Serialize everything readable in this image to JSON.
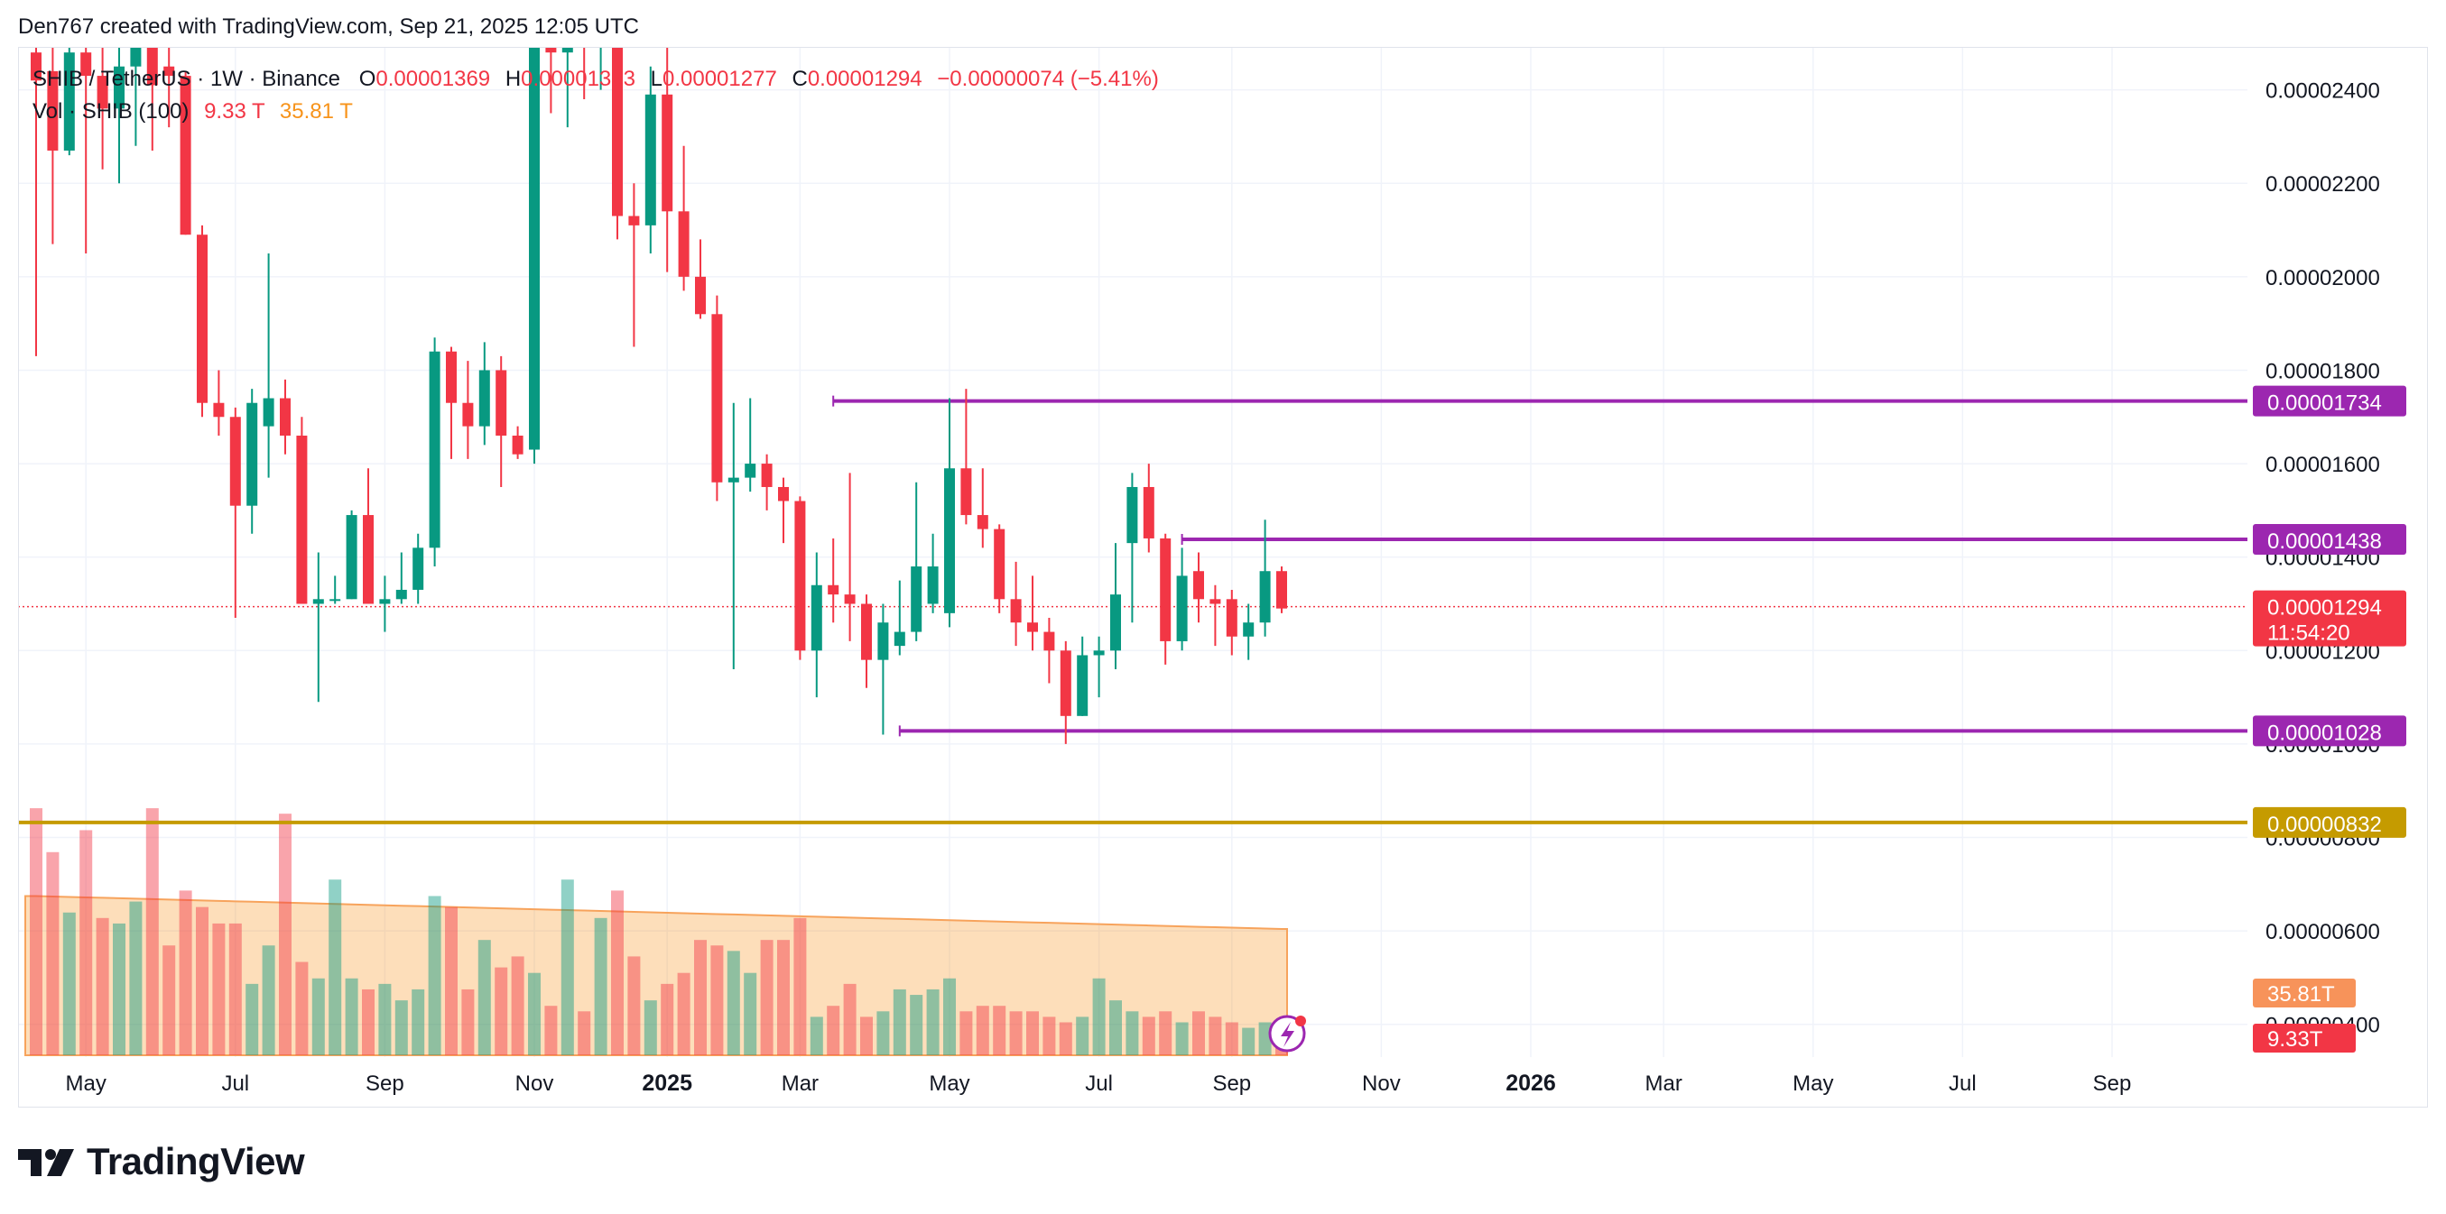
{
  "header": {
    "text": "Den767 created with TradingView.com, Sep 21, 2025 12:05 UTC"
  },
  "legend": {
    "symbol": "SHIB / TetherUS · 1W · Binance",
    "open_label": "O",
    "open": "0.00001369",
    "high_label": "H",
    "high": "0.00001383",
    "low_label": "L",
    "low": "0.00001277",
    "close_label": "C",
    "close": "0.00001294",
    "change": "−0.00000074 (−5.41%)",
    "vol_label": "Vol · SHIB (100)",
    "vol_value": "9.33 T",
    "vol_ma": "35.81 T"
  },
  "footer": {
    "brand": "TradingView"
  },
  "colors": {
    "up": "#089981",
    "down": "#f23645",
    "level": "#9c27b0",
    "support": "#c59b00",
    "vol_up": "rgba(8,153,129,0.45)",
    "vol_down": "rgba(242,54,69,0.45)",
    "vol_ma_fill": "rgba(247,147,26,0.30)",
    "vol_ma_line": "#f7a35c",
    "tag_vol_ma": "#f7935a",
    "tag_vol": "#f23645",
    "grid": "#f0f3fa"
  },
  "chart_data": {
    "type": "candlestick",
    "timeframe": "1W",
    "y_axis": {
      "ticks": [
        "0.00002400",
        "0.00002200",
        "0.00002000",
        "0.00001800",
        "0.00001600",
        "0.00001400",
        "0.00001200",
        "0.00001000",
        "0.00000800",
        "0.00000600",
        "0.00000400"
      ],
      "tick_values": [
        2.4e-05,
        2.2e-05,
        2e-05,
        1.8e-05,
        1.6e-05,
        1.4e-05,
        1.2e-05,
        1e-05,
        8e-06,
        6e-06,
        4e-06
      ],
      "ylim": [
        3.3e-06,
        2.49e-05
      ]
    },
    "x_axis": {
      "labels": [
        {
          "text": "May",
          "bold": false,
          "week": 3
        },
        {
          "text": "Jul",
          "bold": false,
          "week": 12
        },
        {
          "text": "Sep",
          "bold": false,
          "week": 21
        },
        {
          "text": "Nov",
          "bold": false,
          "week": 30
        },
        {
          "text": "2025",
          "bold": true,
          "week": 38
        },
        {
          "text": "Mar",
          "bold": false,
          "week": 46
        },
        {
          "text": "May",
          "bold": false,
          "week": 55
        },
        {
          "text": "Jul",
          "bold": false,
          "week": 64
        },
        {
          "text": "Sep",
          "bold": false,
          "week": 72
        },
        {
          "text": "Nov",
          "bold": false,
          "week": 81
        },
        {
          "text": "2026",
          "bold": true,
          "week": 90
        },
        {
          "text": "Mar",
          "bold": false,
          "week": 98
        },
        {
          "text": "May",
          "bold": false,
          "week": 107
        },
        {
          "text": "Jul",
          "bold": false,
          "week": 116
        },
        {
          "text": "Sep",
          "bold": false,
          "week": 125
        }
      ],
      "weeks_visible": 133
    },
    "candles": [
      {
        "o": 2.48e-05,
        "h": 2.62e-05,
        "l": 1.83e-05,
        "c": 2.42e-05
      },
      {
        "o": 2.44e-05,
        "h": 2.54e-05,
        "l": 2.07e-05,
        "c": 2.27e-05
      },
      {
        "o": 2.27e-05,
        "h": 2.6e-05,
        "l": 2.26e-05,
        "c": 2.48e-05
      },
      {
        "o": 2.48e-05,
        "h": 2.62e-05,
        "l": 2.05e-05,
        "c": 2.43e-05
      },
      {
        "o": 2.43e-05,
        "h": 2.56e-05,
        "l": 2.23e-05,
        "c": 2.36e-05
      },
      {
        "o": 2.36e-05,
        "h": 2.55e-05,
        "l": 2.2e-05,
        "c": 2.45e-05
      },
      {
        "o": 2.45e-05,
        "h": 2.54e-05,
        "l": 2.28e-05,
        "c": 2.5e-05
      },
      {
        "o": 2.5e-05,
        "h": 2.52e-05,
        "l": 2.27e-05,
        "c": 2.41e-05
      },
      {
        "o": 2.45e-05,
        "h": 2.53e-05,
        "l": 2.32e-05,
        "c": 2.43e-05
      },
      {
        "o": 2.43e-05,
        "h": 2.44e-05,
        "l": 2.09e-05,
        "c": 2.09e-05
      },
      {
        "o": 2.09e-05,
        "h": 2.11e-05,
        "l": 1.7e-05,
        "c": 1.73e-05
      },
      {
        "o": 1.73e-05,
        "h": 1.8e-05,
        "l": 1.66e-05,
        "c": 1.7e-05
      },
      {
        "o": 1.7e-05,
        "h": 1.72e-05,
        "l": 1.27e-05,
        "c": 1.51e-05
      },
      {
        "o": 1.51e-05,
        "h": 1.76e-05,
        "l": 1.45e-05,
        "c": 1.73e-05
      },
      {
        "o": 1.68e-05,
        "h": 2.05e-05,
        "l": 1.57e-05,
        "c": 1.74e-05
      },
      {
        "o": 1.74e-05,
        "h": 1.78e-05,
        "l": 1.62e-05,
        "c": 1.66e-05
      },
      {
        "o": 1.66e-05,
        "h": 1.7e-05,
        "l": 1.3e-05,
        "c": 1.3e-05
      },
      {
        "o": 1.3e-05,
        "h": 1.41e-05,
        "l": 1.09e-05,
        "c": 1.31e-05
      },
      {
        "o": 1.31e-05,
        "h": 1.36e-05,
        "l": 1.3e-05,
        "c": 1.31e-05
      },
      {
        "o": 1.31e-05,
        "h": 1.5e-05,
        "l": 1.31e-05,
        "c": 1.49e-05
      },
      {
        "o": 1.49e-05,
        "h": 1.59e-05,
        "l": 1.3e-05,
        "c": 1.3e-05
      },
      {
        "o": 1.3e-05,
        "h": 1.36e-05,
        "l": 1.24e-05,
        "c": 1.31e-05
      },
      {
        "o": 1.31e-05,
        "h": 1.41e-05,
        "l": 1.3e-05,
        "c": 1.33e-05
      },
      {
        "o": 1.33e-05,
        "h": 1.45e-05,
        "l": 1.3e-05,
        "c": 1.42e-05
      },
      {
        "o": 1.42e-05,
        "h": 1.87e-05,
        "l": 1.38e-05,
        "c": 1.84e-05
      },
      {
        "o": 1.84e-05,
        "h": 1.85e-05,
        "l": 1.61e-05,
        "c": 1.73e-05
      },
      {
        "o": 1.73e-05,
        "h": 1.82e-05,
        "l": 1.61e-05,
        "c": 1.68e-05
      },
      {
        "o": 1.68e-05,
        "h": 1.86e-05,
        "l": 1.64e-05,
        "c": 1.8e-05
      },
      {
        "o": 1.8e-05,
        "h": 1.83e-05,
        "l": 1.55e-05,
        "c": 1.66e-05
      },
      {
        "o": 1.66e-05,
        "h": 1.68e-05,
        "l": 1.61e-05,
        "c": 1.62e-05
      },
      {
        "o": 1.63e-05,
        "h": 2.6e-05,
        "l": 1.6e-05,
        "c": 2.5e-05
      },
      {
        "o": 2.5e-05,
        "h": 2.62e-05,
        "l": 2.35e-05,
        "c": 2.48e-05
      },
      {
        "o": 2.48e-05,
        "h": 2.62e-05,
        "l": 2.32e-05,
        "c": 2.53e-05
      },
      {
        "o": 2.53e-05,
        "h": 2.62e-05,
        "l": 2.38e-05,
        "c": 2.49e-05
      },
      {
        "o": 2.49e-05,
        "h": 2.58e-05,
        "l": 2.4e-05,
        "c": 2.52e-05
      },
      {
        "o": 2.52e-05,
        "h": 2.56e-05,
        "l": 2.08e-05,
        "c": 2.13e-05
      },
      {
        "o": 2.13e-05,
        "h": 2.2e-05,
        "l": 1.85e-05,
        "c": 2.11e-05
      },
      {
        "o": 2.11e-05,
        "h": 2.45e-05,
        "l": 2.05e-05,
        "c": 2.39e-05
      },
      {
        "o": 2.39e-05,
        "h": 2.5e-05,
        "l": 2.01e-05,
        "c": 2.14e-05
      },
      {
        "o": 2.14e-05,
        "h": 2.28e-05,
        "l": 1.97e-05,
        "c": 2e-05
      },
      {
        "o": 2e-05,
        "h": 2.08e-05,
        "l": 1.91e-05,
        "c": 1.92e-05
      },
      {
        "o": 1.92e-05,
        "h": 1.96e-05,
        "l": 1.52e-05,
        "c": 1.56e-05
      },
      {
        "o": 1.56e-05,
        "h": 1.73e-05,
        "l": 1.16e-05,
        "c": 1.57e-05
      },
      {
        "o": 1.57e-05,
        "h": 1.74e-05,
        "l": 1.54e-05,
        "c": 1.6e-05
      },
      {
        "o": 1.6e-05,
        "h": 1.62e-05,
        "l": 1.5e-05,
        "c": 1.55e-05
      },
      {
        "o": 1.55e-05,
        "h": 1.57e-05,
        "l": 1.43e-05,
        "c": 1.52e-05
      },
      {
        "o": 1.52e-05,
        "h": 1.53e-05,
        "l": 1.18e-05,
        "c": 1.2e-05
      },
      {
        "o": 1.2e-05,
        "h": 1.41e-05,
        "l": 1.1e-05,
        "c": 1.34e-05
      },
      {
        "o": 1.34e-05,
        "h": 1.44e-05,
        "l": 1.26e-05,
        "c": 1.32e-05
      },
      {
        "o": 1.32e-05,
        "h": 1.58e-05,
        "l": 1.22e-05,
        "c": 1.3e-05
      },
      {
        "o": 1.3e-05,
        "h": 1.32e-05,
        "l": 1.12e-05,
        "c": 1.18e-05
      },
      {
        "o": 1.18e-05,
        "h": 1.3e-05,
        "l": 1.02e-05,
        "c": 1.26e-05
      },
      {
        "o": 1.21e-05,
        "h": 1.35e-05,
        "l": 1.19e-05,
        "c": 1.24e-05
      },
      {
        "o": 1.24e-05,
        "h": 1.56e-05,
        "l": 1.22e-05,
        "c": 1.38e-05
      },
      {
        "o": 1.3e-05,
        "h": 1.45e-05,
        "l": 1.28e-05,
        "c": 1.38e-05
      },
      {
        "o": 1.28e-05,
        "h": 1.74e-05,
        "l": 1.25e-05,
        "c": 1.59e-05
      },
      {
        "o": 1.59e-05,
        "h": 1.76e-05,
        "l": 1.47e-05,
        "c": 1.49e-05
      },
      {
        "o": 1.49e-05,
        "h": 1.59e-05,
        "l": 1.42e-05,
        "c": 1.46e-05
      },
      {
        "o": 1.46e-05,
        "h": 1.47e-05,
        "l": 1.28e-05,
        "c": 1.31e-05
      },
      {
        "o": 1.31e-05,
        "h": 1.39e-05,
        "l": 1.21e-05,
        "c": 1.26e-05
      },
      {
        "o": 1.26e-05,
        "h": 1.36e-05,
        "l": 1.2e-05,
        "c": 1.24e-05
      },
      {
        "o": 1.24e-05,
        "h": 1.27e-05,
        "l": 1.13e-05,
        "c": 1.2e-05
      },
      {
        "o": 1.2e-05,
        "h": 1.22e-05,
        "l": 1e-05,
        "c": 1.06e-05
      },
      {
        "o": 1.06e-05,
        "h": 1.23e-05,
        "l": 1.06e-05,
        "c": 1.19e-05
      },
      {
        "o": 1.19e-05,
        "h": 1.23e-05,
        "l": 1.1e-05,
        "c": 1.2e-05
      },
      {
        "o": 1.2e-05,
        "h": 1.43e-05,
        "l": 1.16e-05,
        "c": 1.32e-05
      },
      {
        "o": 1.43e-05,
        "h": 1.58e-05,
        "l": 1.26e-05,
        "c": 1.55e-05
      },
      {
        "o": 1.55e-05,
        "h": 1.6e-05,
        "l": 1.41e-05,
        "c": 1.44e-05
      },
      {
        "o": 1.44e-05,
        "h": 1.45e-05,
        "l": 1.17e-05,
        "c": 1.22e-05
      },
      {
        "o": 1.22e-05,
        "h": 1.42e-05,
        "l": 1.2e-05,
        "c": 1.36e-05
      },
      {
        "o": 1.37e-05,
        "h": 1.41e-05,
        "l": 1.26e-05,
        "c": 1.31e-05
      },
      {
        "o": 1.31e-05,
        "h": 1.34e-05,
        "l": 1.21e-05,
        "c": 1.3e-05
      },
      {
        "o": 1.31e-05,
        "h": 1.33e-05,
        "l": 1.19e-05,
        "c": 1.23e-05
      },
      {
        "o": 1.23e-05,
        "h": 1.3e-05,
        "l": 1.18e-05,
        "c": 1.26e-05
      },
      {
        "o": 1.26e-05,
        "h": 1.48e-05,
        "l": 1.23e-05,
        "c": 1.37e-05
      },
      {
        "o": 1.37e-05,
        "h": 1.38e-05,
        "l": 1.28e-05,
        "c": 1.29e-05
      }
    ],
    "volume": {
      "series_name": "Vol · SHIB (100)",
      "scale_max": 46,
      "values": [
        45,
        37,
        26,
        41,
        25,
        24,
        28,
        45,
        20,
        30,
        27,
        24,
        24,
        13,
        20,
        44,
        17,
        14,
        32,
        14,
        12,
        13,
        10,
        12,
        29,
        27,
        12,
        21,
        16,
        18,
        15,
        9,
        32,
        8,
        25,
        30,
        18,
        10,
        13,
        15,
        21,
        20,
        19,
        15,
        21,
        21,
        25,
        7,
        9,
        13,
        7,
        8,
        12,
        11,
        12,
        14,
        8,
        9,
        9,
        8,
        8,
        7,
        6,
        7,
        14,
        10,
        8,
        7,
        8,
        6,
        8,
        7,
        6,
        5,
        6,
        5
      ],
      "ma_value": "35.81T",
      "last_value": "9.33T"
    },
    "levels": [
      {
        "name": "resistance-high",
        "value": 1.734e-05,
        "label": "0.00001734",
        "color": "#9c27b0",
        "start_week": 48
      },
      {
        "name": "resistance-mid",
        "value": 1.438e-05,
        "label": "0.00001438",
        "color": "#9c27b0",
        "start_week": 69
      },
      {
        "name": "support-range",
        "value": 1.028e-05,
        "label": "0.00001028",
        "color": "#9c27b0",
        "start_week": 52
      },
      {
        "name": "support-major",
        "value": 8.32e-06,
        "label": "0.00000832",
        "color": "#c59b00",
        "start_week": -10
      }
    ],
    "last_price": {
      "value": 1.294e-05,
      "label": "0.00001294",
      "countdown": "11:54:20"
    }
  }
}
